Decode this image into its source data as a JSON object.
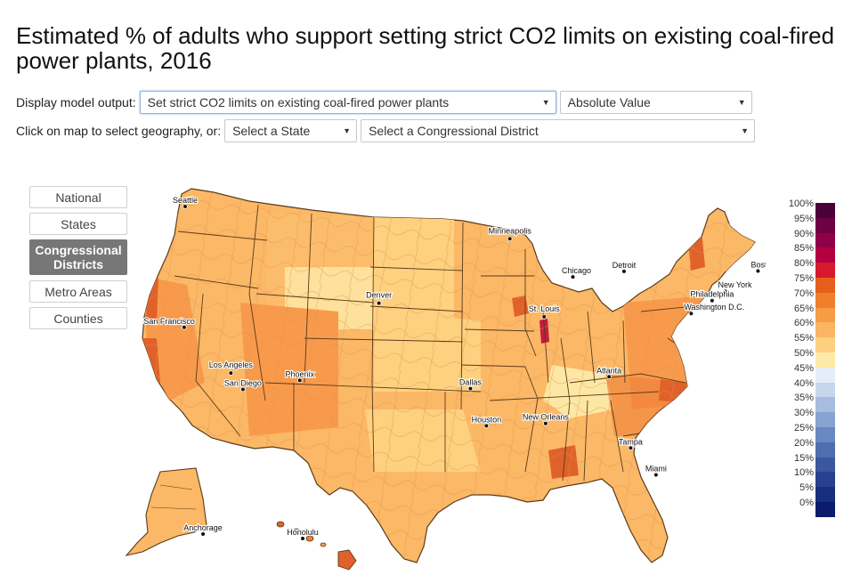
{
  "title": "Estimated % of adults who support setting strict CO2 limits on existing coal-fired power plants, 2016",
  "controls": {
    "display_label": "Display model output:",
    "model_output": "Set strict CO2 limits on existing coal-fired power plants",
    "value_type": "Absolute Value",
    "geo_label": "Click on map to select geography, or:",
    "state_select": "Select a State",
    "district_select": "Select a Congressional District"
  },
  "geography_buttons": [
    {
      "label": "National",
      "active": false
    },
    {
      "label": "States",
      "active": false
    },
    {
      "label": "Congressional Districts",
      "active": true
    },
    {
      "label": "Metro Areas",
      "active": false
    },
    {
      "label": "Counties",
      "active": false
    }
  ],
  "cities": [
    {
      "name": "Seattle",
      "lon": -122.33,
      "lat": 47.61
    },
    {
      "name": "Minneapolis",
      "lon": -93.27,
      "lat": 44.98
    },
    {
      "name": "Boston",
      "lon": -71.06,
      "lat": 42.36
    },
    {
      "name": "Detroit",
      "lon": -83.05,
      "lat": 42.33
    },
    {
      "name": "Chicago",
      "lon": -87.63,
      "lat": 41.88
    },
    {
      "name": "New York",
      "lon": -74.0,
      "lat": 40.71
    },
    {
      "name": "Philadelphia",
      "lon": -75.17,
      "lat": 39.95
    },
    {
      "name": "Washington D.C.",
      "lon": -77.04,
      "lat": 38.9
    },
    {
      "name": "San Francisco",
      "lon": -122.42,
      "lat": 37.77
    },
    {
      "name": "Denver",
      "lon": -104.99,
      "lat": 39.74
    },
    {
      "name": "St. Louis",
      "lon": -90.2,
      "lat": 38.63
    },
    {
      "name": "Los Angeles",
      "lon": -118.24,
      "lat": 34.05
    },
    {
      "name": "San Diego",
      "lon": -117.16,
      "lat": 32.72
    },
    {
      "name": "Phoenix",
      "lon": -112.07,
      "lat": 33.45
    },
    {
      "name": "Atlanta",
      "lon": -84.39,
      "lat": 33.75
    },
    {
      "name": "Dallas",
      "lon": -96.8,
      "lat": 32.78
    },
    {
      "name": "New Orleans",
      "lon": -90.07,
      "lat": 29.95
    },
    {
      "name": "Houston",
      "lon": -95.37,
      "lat": 29.76
    },
    {
      "name": "Tampa",
      "lon": -82.46,
      "lat": 27.95
    },
    {
      "name": "Miami",
      "lon": -80.19,
      "lat": 25.76
    },
    {
      "name": "Anchorage",
      "lon": -149.9,
      "lat": 61.22
    },
    {
      "name": "Honolulu",
      "lon": -157.86,
      "lat": 21.31
    }
  ],
  "legend": {
    "labels": [
      "100%",
      "95%",
      "90%",
      "85%",
      "80%",
      "75%",
      "70%",
      "65%",
      "60%",
      "55%",
      "50%",
      "45%",
      "40%",
      "35%",
      "30%",
      "25%",
      "20%",
      "15%",
      "10%",
      "5%",
      "0%"
    ],
    "colors": [
      "#4a0038",
      "#6e0043",
      "#8e0048",
      "#b3003f",
      "#d7192d",
      "#e65f1c",
      "#f07f2c",
      "#f79b45",
      "#fbb562",
      "#fdd080",
      "#feeaa8",
      "#e5eef8",
      "#c6d6ec",
      "#a6bddf",
      "#86a3d1",
      "#6a88c1",
      "#4f6eb0",
      "#3a57a0",
      "#28418f",
      "#172d7e",
      "#0a1c6b"
    ]
  },
  "colors": {
    "pale": "#fde7a4",
    "light": "#fdd17f",
    "mid": "#fbb866",
    "orange": "#f89a4c",
    "deep": "#f07f35",
    "dark": "#e0622a",
    "red": "#c51b3f"
  }
}
